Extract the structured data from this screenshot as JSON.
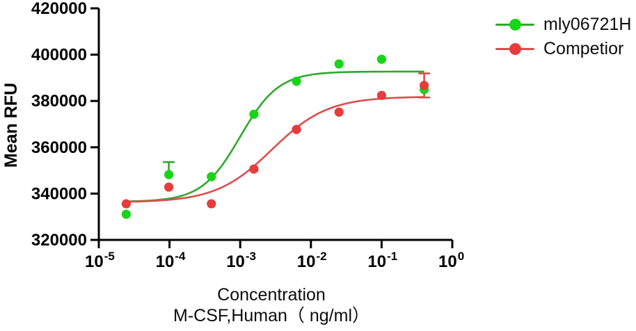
{
  "figure": {
    "y_axis_title": "Mean RFU",
    "x_axis_title_line1": "Concentration",
    "x_axis_title_line2": "M-CSF,Human（ ng/ml）"
  },
  "legend": {
    "items": [
      {
        "label": "mly06721H",
        "color": "#17d517"
      },
      {
        "label": "Competior",
        "color": "#e63c3c"
      }
    ]
  },
  "chart_data": {
    "type": "scatter",
    "subtype": "dose-response-4PL",
    "title": "",
    "xlabel": "Concentration M-CSF,Human（ ng/ml）",
    "ylabel": "Mean RFU",
    "x_scale": "log10",
    "xlim_log10": [
      -5,
      0
    ],
    "ylim": [
      320000,
      420000
    ],
    "grid": false,
    "legend_position": "outside-top-right",
    "y_ticks": [
      320000,
      340000,
      360000,
      380000,
      400000,
      420000
    ],
    "y_tick_labels": [
      "320000",
      "340000",
      "360000",
      "380000",
      "400000",
      "420000"
    ],
    "x_tick_base": "10",
    "x_tick_exponents": [
      "-5",
      "-4",
      "-3",
      "-2",
      "-1",
      "0"
    ],
    "x": [
      2.44e-05,
      9.77e-05,
      0.000391,
      0.0015625,
      0.00625,
      0.025,
      0.1,
      0.4
    ],
    "series": [
      {
        "name": "mly06721H",
        "marker_color": "#17d517",
        "line_color": "#2da82d",
        "values": [
          331100,
          348200,
          347300,
          374300,
          388500,
          396000,
          398000,
          384900
        ],
        "error_bars": [
          {
            "index": 1,
            "plus": 5400,
            "minus": 0
          }
        ],
        "fit": {
          "bottom": 336500,
          "top": 392700,
          "logEC50": -3.0,
          "hill": 1.6
        }
      },
      {
        "name": "Competior",
        "marker_color": "#e63c3c",
        "line_color": "#e04b4b",
        "values": [
          335600,
          342800,
          335600,
          350600,
          367700,
          375200,
          382400,
          386700
        ],
        "error_bars": [
          {
            "index": 7,
            "plus": 5200,
            "minus": 5200
          }
        ],
        "fit": {
          "bottom": 336200,
          "top": 381900,
          "logEC50": -2.55,
          "hill": 1.1
        }
      }
    ]
  }
}
